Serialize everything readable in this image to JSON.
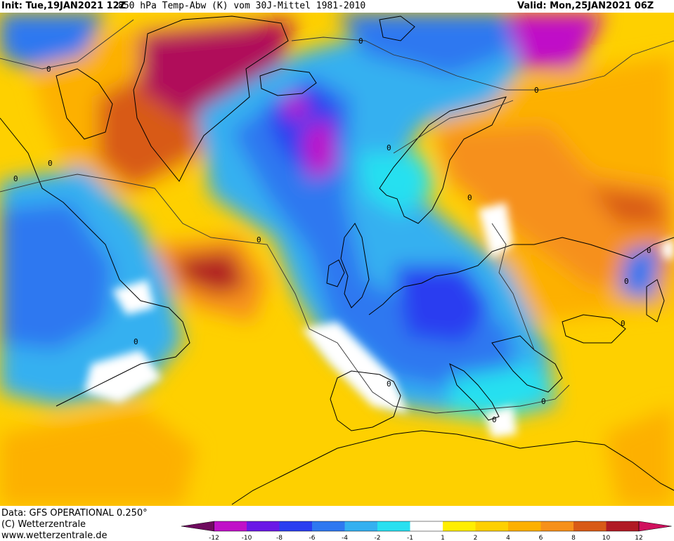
{
  "header": {
    "init": "Init: Tue,19JAN2021 12Z",
    "description": "850 hPa Temp-Abw (K) vom 30J-Mittel 1981-2010",
    "valid": "Valid: Mon,25JAN2021 06Z"
  },
  "footer": {
    "data_source": "Data: GFS OPERATIONAL 0.250°",
    "copyright": "(C) Wetterzentrale",
    "url": "www.wetterzentrale.de"
  },
  "colorbar": {
    "ticks": [
      "-12",
      "-10",
      "-8",
      "-6",
      "-4",
      "-2",
      "-1",
      "1",
      "2",
      "4",
      "6",
      "8",
      "10",
      "12"
    ],
    "colors": [
      "#6e0a5e",
      "#c010c8",
      "#6a18e6",
      "#2a3ef0",
      "#2e78f0",
      "#34b0f0",
      "#28e0f0",
      "#ffffff",
      "#ffee00",
      "#fed000",
      "#fdb000",
      "#f6901a",
      "#d85a16",
      "#b01a24",
      "#d0105e"
    ]
  },
  "contour_labels": [
    "0",
    "0",
    "0",
    "0",
    "0",
    "0",
    "0",
    "0",
    "0",
    "0",
    "0",
    "0",
    "0",
    "0",
    "0"
  ]
}
